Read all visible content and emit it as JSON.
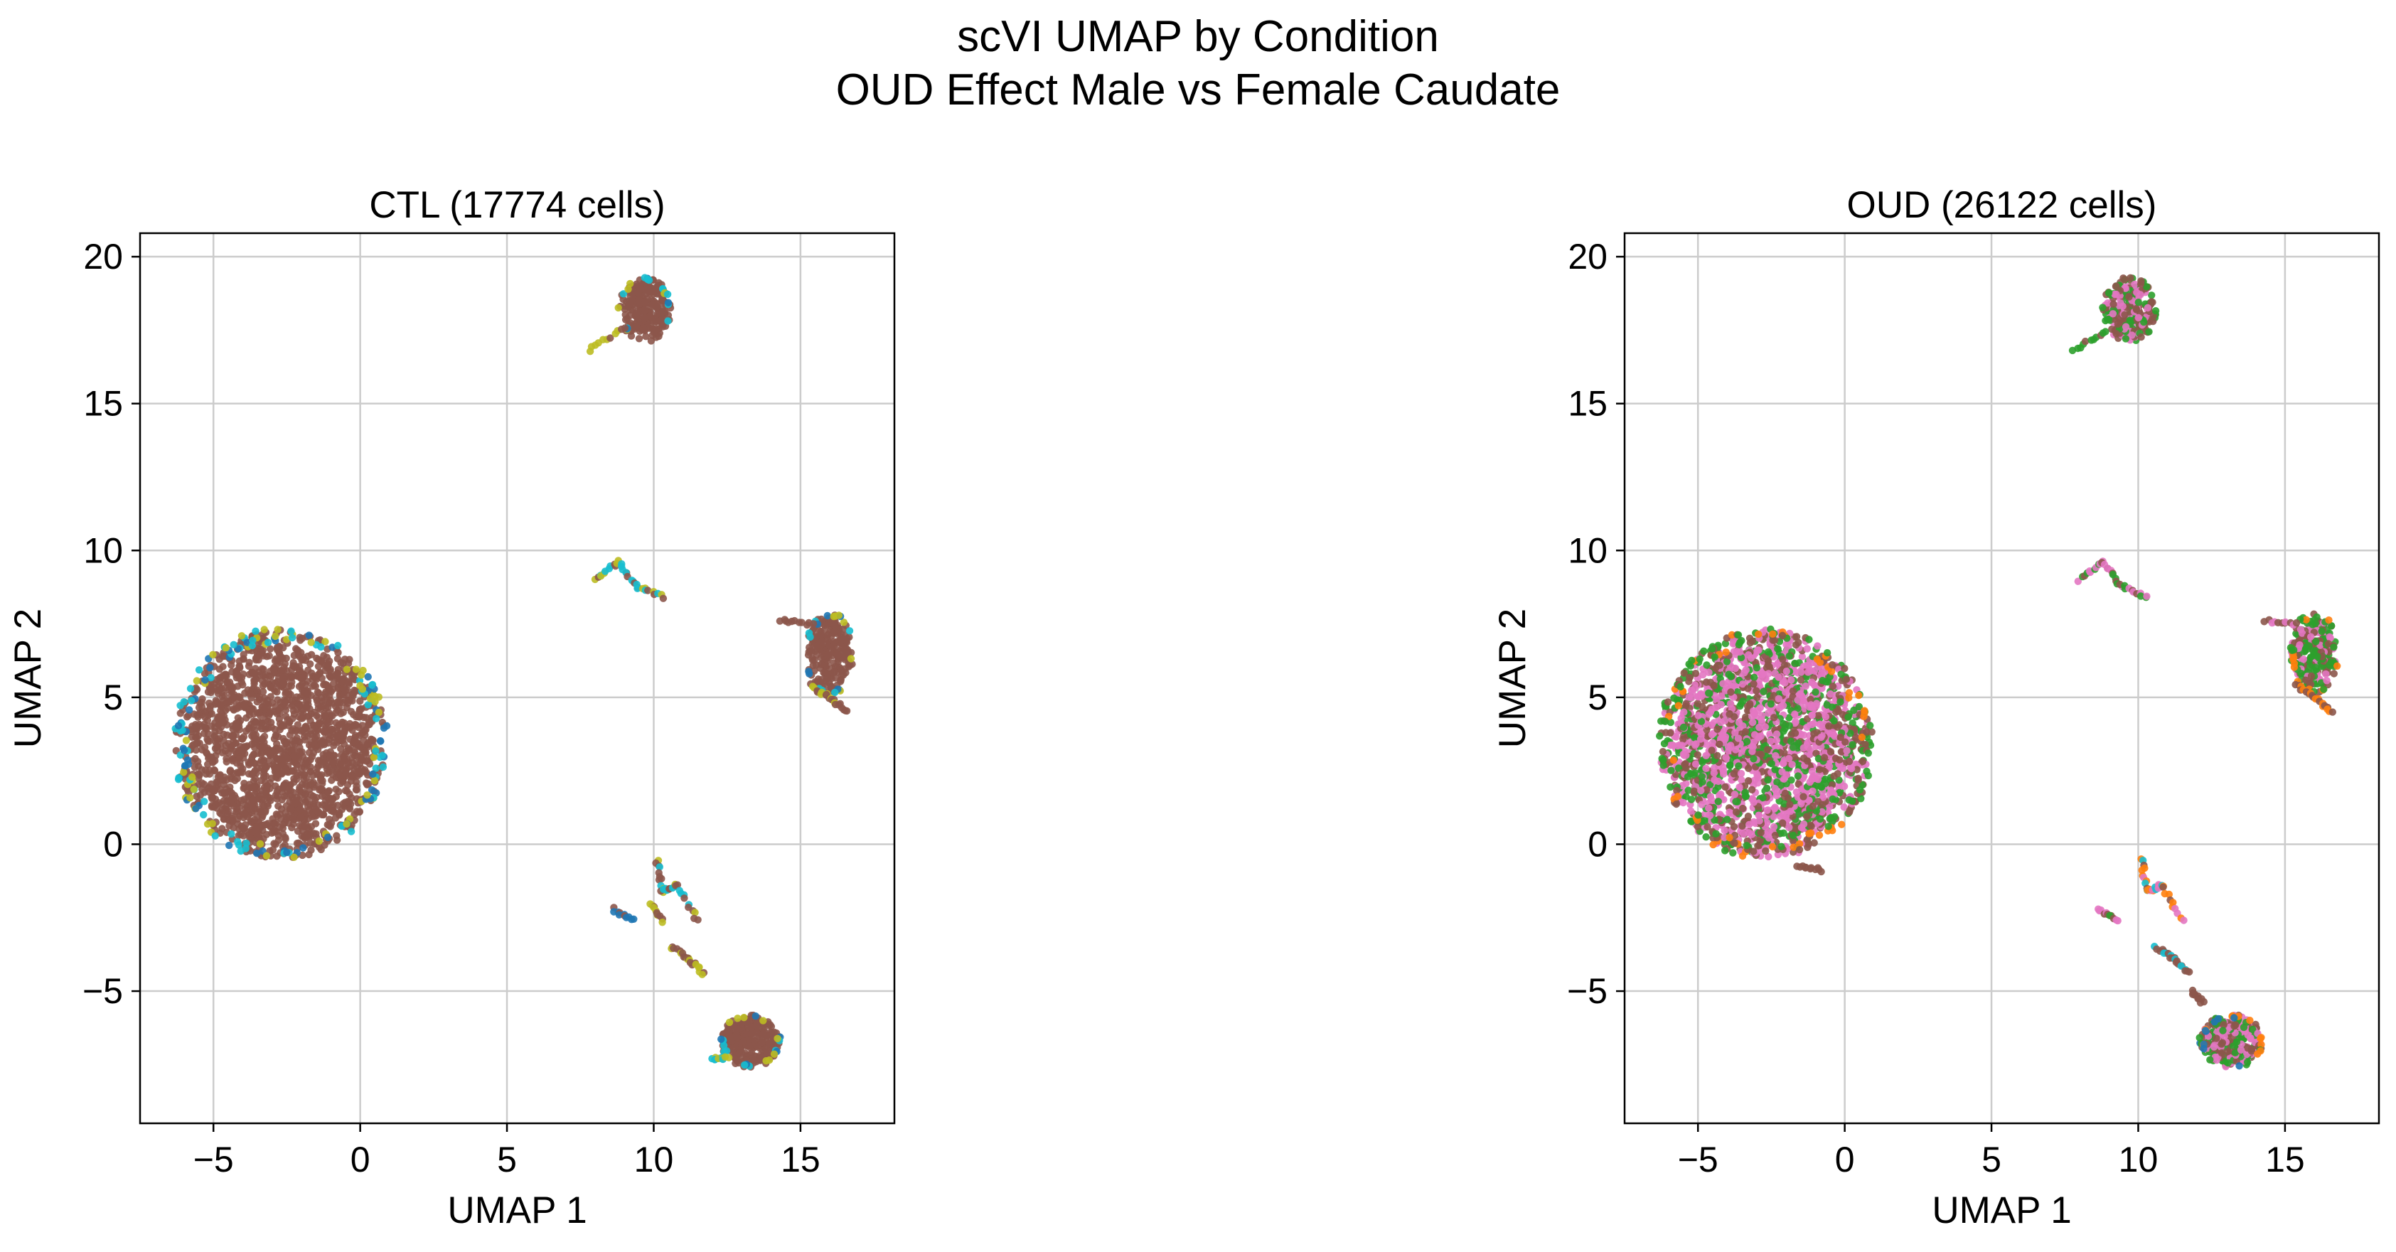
{
  "suptitle": {
    "line1": "scVI UMAP by Condition",
    "line2": "OUD Effect Male vs Female Caudate"
  },
  "chart_data": [
    {
      "type": "scatter",
      "title": "CTL (17774 cells)",
      "xlabel": "UMAP 1",
      "ylabel": "UMAP 2",
      "xlim": [
        -7.5,
        18.2
      ],
      "ylim": [
        -9.5,
        20.8
      ],
      "xticks": [
        -5,
        0,
        5,
        10,
        15
      ],
      "yticks": [
        -5,
        0,
        5,
        10,
        15,
        20
      ],
      "xtick_labels": [
        "−5",
        "0",
        "5",
        "10",
        "15"
      ],
      "ytick_labels": [
        "−5",
        "0",
        "5",
        "10",
        "15",
        "20"
      ],
      "grid": true,
      "legend": "none",
      "dominant_color": "#8c564b",
      "series_colors": [
        "#1f77b4",
        "#17becf",
        "#bcbd22",
        "#8c564b"
      ],
      "clusters": [
        {
          "cx": -2.7,
          "cy": 3.4,
          "rx": 3.6,
          "ry": 3.9,
          "n": 900,
          "colors": [
            "#8c564b"
          ],
          "edge": [
            "#bcbd22",
            "#1f77b4",
            "#17becf"
          ]
        },
        {
          "cx": 9.7,
          "cy": 18.2,
          "rx": 0.9,
          "ry": 1.1,
          "n": 110,
          "colors": [
            "#8c564b"
          ],
          "edge": [
            "#17becf",
            "#bcbd22",
            "#1f77b4"
          ]
        },
        {
          "cx": 16.0,
          "cy": 6.5,
          "rx": 0.8,
          "ry": 1.4,
          "n": 110,
          "colors": [
            "#8c564b"
          ],
          "edge": [
            "#bcbd22",
            "#17becf",
            "#1f77b4"
          ]
        },
        {
          "cx": 13.3,
          "cy": -6.7,
          "rx": 1.0,
          "ry": 0.9,
          "n": 120,
          "colors": [
            "#8c564b"
          ],
          "edge": [
            "#1f77b4",
            "#17becf",
            "#bcbd22"
          ]
        }
      ],
      "streaks": [
        {
          "points": [
            [
              7.8,
              16.8
            ],
            [
              9.0,
              17.6
            ]
          ],
          "colors": [
            "#bcbd22",
            "#8c564b"
          ]
        },
        {
          "points": [
            [
              8.0,
              9.0
            ],
            [
              8.8,
              9.6
            ],
            [
              9.4,
              8.8
            ],
            [
              10.3,
              8.4
            ]
          ],
          "colors": [
            "#8c564b",
            "#bcbd22",
            "#17becf"
          ]
        },
        {
          "points": [
            [
              14.3,
              7.6
            ],
            [
              15.4,
              7.5
            ]
          ],
          "colors": [
            "#8c564b"
          ]
        },
        {
          "points": [
            [
              15.4,
              5.4
            ],
            [
              16.0,
              5.0
            ],
            [
              16.6,
              4.5
            ]
          ],
          "colors": [
            "#8c564b",
            "#bcbd22"
          ]
        },
        {
          "points": [
            [
              8.6,
              -2.2
            ],
            [
              9.3,
              -2.6
            ]
          ],
          "colors": [
            "#8c564b",
            "#1f77b4"
          ]
        },
        {
          "points": [
            [
              10.1,
              -0.5
            ],
            [
              10.3,
              -1.6
            ],
            [
              10.8,
              -1.4
            ],
            [
              11.5,
              -2.6
            ]
          ],
          "colors": [
            "#8c564b",
            "#bcbd22",
            "#17becf"
          ]
        },
        {
          "points": [
            [
              9.9,
              -2.0
            ],
            [
              10.3,
              -2.6
            ]
          ],
          "colors": [
            "#8c564b",
            "#bcbd22"
          ]
        },
        {
          "points": [
            [
              10.6,
              -3.5
            ],
            [
              11.2,
              -3.9
            ],
            [
              11.7,
              -4.4
            ]
          ],
          "colors": [
            "#8c564b",
            "#bcbd22"
          ]
        },
        {
          "points": [
            [
              12.0,
              -7.3
            ],
            [
              12.5,
              -7.3
            ]
          ],
          "colors": [
            "#17becf",
            "#bcbd22"
          ]
        }
      ]
    },
    {
      "type": "scatter",
      "title": "OUD (26122 cells)",
      "xlabel": "UMAP 1",
      "ylabel": "UMAP 2",
      "xlim": [
        -7.5,
        18.2
      ],
      "ylim": [
        -9.5,
        20.8
      ],
      "xticks": [
        -5,
        0,
        5,
        10,
        15
      ],
      "yticks": [
        -5,
        0,
        5,
        10,
        15,
        20
      ],
      "xtick_labels": [
        "−5",
        "0",
        "5",
        "10",
        "15"
      ],
      "ytick_labels": [
        "−5",
        "0",
        "5",
        "10",
        "15",
        "20"
      ],
      "grid": true,
      "legend": "none",
      "dominant_color": "#e377c2",
      "series_colors": [
        "#2ca02c",
        "#8c564b",
        "#e377c2",
        "#ff7f0e",
        "#17becf",
        "#1f77b4"
      ],
      "clusters": [
        {
          "cx": -2.7,
          "cy": 3.4,
          "rx": 3.6,
          "ry": 3.9,
          "n": 1000,
          "colors": [
            "#8c564b",
            "#e377c2",
            "#e377c2",
            "#2ca02c"
          ],
          "edge": [
            "#2ca02c",
            "#8c564b",
            "#ff7f0e"
          ]
        },
        {
          "cx": 9.7,
          "cy": 18.2,
          "rx": 0.9,
          "ry": 1.1,
          "n": 120,
          "colors": [
            "#e377c2",
            "#8c564b",
            "#2ca02c"
          ],
          "edge": [
            "#2ca02c",
            "#8c564b"
          ]
        },
        {
          "cx": 16.0,
          "cy": 6.5,
          "rx": 0.8,
          "ry": 1.4,
          "n": 120,
          "colors": [
            "#8c564b",
            "#e377c2",
            "#2ca02c"
          ],
          "edge": [
            "#ff7f0e",
            "#2ca02c"
          ]
        },
        {
          "cx": 13.2,
          "cy": -6.7,
          "rx": 1.1,
          "ry": 0.9,
          "n": 140,
          "colors": [
            "#8c564b",
            "#e377c2",
            "#2ca02c"
          ],
          "edge": [
            "#ff7f0e",
            "#2ca02c",
            "#1f77b4"
          ]
        }
      ],
      "streaks": [
        {
          "points": [
            [
              7.8,
              16.8
            ],
            [
              8.9,
              17.5
            ]
          ],
          "colors": [
            "#2ca02c",
            "#8c564b"
          ]
        },
        {
          "points": [
            [
              8.0,
              9.0
            ],
            [
              8.8,
              9.6
            ],
            [
              9.4,
              8.8
            ],
            [
              10.3,
              8.4
            ]
          ],
          "colors": [
            "#e377c2",
            "#8c564b",
            "#2ca02c"
          ]
        },
        {
          "points": [
            [
              14.3,
              7.6
            ],
            [
              15.4,
              7.5
            ]
          ],
          "colors": [
            "#8c564b",
            "#e377c2"
          ]
        },
        {
          "points": [
            [
              15.4,
              5.4
            ],
            [
              16.0,
              5.0
            ],
            [
              16.6,
              4.5
            ]
          ],
          "colors": [
            "#8c564b",
            "#ff7f0e"
          ]
        },
        {
          "points": [
            [
              8.6,
              -2.2
            ],
            [
              9.3,
              -2.6
            ]
          ],
          "colors": [
            "#8c564b",
            "#e377c2",
            "#2ca02c"
          ]
        },
        {
          "points": [
            [
              10.1,
              -0.5
            ],
            [
              10.3,
              -1.6
            ],
            [
              10.8,
              -1.4
            ],
            [
              11.5,
              -2.6
            ]
          ],
          "colors": [
            "#e377c2",
            "#8c564b",
            "#ff7f0e",
            "#17becf"
          ]
        },
        {
          "points": [
            [
              10.6,
              -3.5
            ],
            [
              11.2,
              -3.9
            ],
            [
              11.7,
              -4.4
            ]
          ],
          "colors": [
            "#8c564b",
            "#17becf"
          ]
        },
        {
          "points": [
            [
              11.8,
              -5.0
            ],
            [
              12.2,
              -5.4
            ]
          ],
          "colors": [
            "#8c564b"
          ]
        },
        {
          "points": [
            [
              -1.6,
              -0.7
            ],
            [
              -0.8,
              -0.9
            ]
          ],
          "colors": [
            "#8c564b"
          ]
        }
      ]
    }
  ]
}
